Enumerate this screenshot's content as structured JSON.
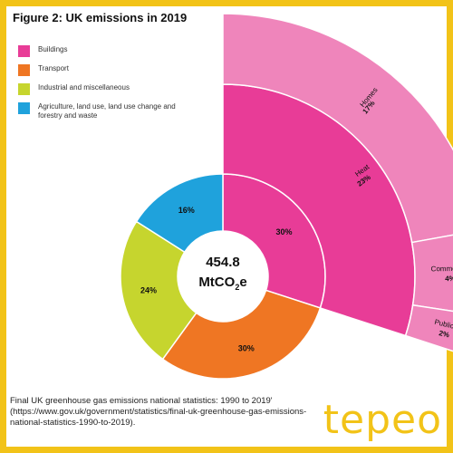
{
  "figure_title": "Figure 2: UK emissions in 2019",
  "source_text": "Final UK greenhouse gas emissions national statistics: 1990 to 2019' (https://www.gov.uk/government/statistics/final-uk-greenhouse-gas-emissions-national-statistics-1990-to-2019).",
  "brand": "tepeo",
  "colors": {
    "buildings": "#e83c97",
    "buildings_outer": "#ef85bb",
    "transport": "#ef7623",
    "industrial": "#c6d52e",
    "agriculture": "#1fa2dc",
    "brand": "#f2c318"
  },
  "chart_data": {
    "type": "pie",
    "center_value": "454.8",
    "center_unit": "MtCO",
    "center_unit_sub": "2",
    "center_unit_tail": "e",
    "legend": [
      {
        "label": "Buildings",
        "color": "#e83c97"
      },
      {
        "label": "Transport",
        "color": "#ef7623"
      },
      {
        "label": "Industrial and miscellaneous",
        "color": "#c6d52e"
      },
      {
        "label": "Agriculture, land use, land use change and forestry and waste",
        "color": "#1fa2dc"
      }
    ],
    "slices": [
      {
        "name": "Buildings",
        "value": 30,
        "label": "30%",
        "color": "#e83c97"
      },
      {
        "name": "Transport",
        "value": 30,
        "label": "30%",
        "color": "#ef7623"
      },
      {
        "name": "Industrial and miscellaneous",
        "value": 24,
        "label": "24%",
        "color": "#c6d52e"
      },
      {
        "name": "Agriculture, land use, land use change and forestry and waste",
        "value": 16,
        "label": "16%",
        "color": "#1fa2dc"
      }
    ],
    "buildings_breakdown": {
      "inner": {
        "name": "Heat",
        "value": 23,
        "label": "23%"
      },
      "outer": [
        {
          "name": "Homes",
          "value": 17,
          "label": "17%"
        },
        {
          "name": "Commercial",
          "value": 4,
          "label": "4%"
        },
        {
          "name": "Public",
          "value": 2,
          "label": "2%"
        }
      ]
    }
  }
}
